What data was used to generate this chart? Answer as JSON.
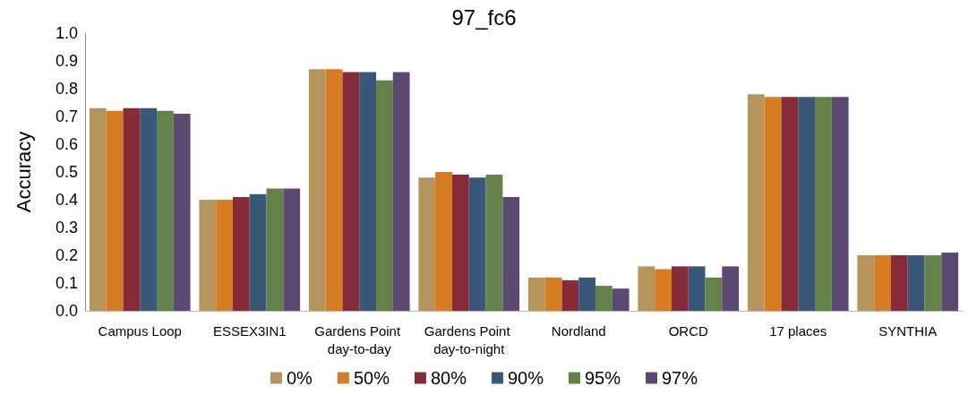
{
  "chart_data": {
    "type": "bar",
    "title": "97_fc6",
    "ylabel": "Accuracy",
    "categories": [
      "Campus Loop",
      "ESSEX3IN1",
      "Gardens Point day-to-day",
      "Gardens Point day-to-night",
      "Nordland",
      "ORCD",
      "17 places",
      "SYNTHIA"
    ],
    "series": [
      {
        "name": "0%",
        "color": "#b5955b",
        "values": [
          0.73,
          0.4,
          0.87,
          0.48,
          0.12,
          0.16,
          0.78,
          0.2
        ]
      },
      {
        "name": "50%",
        "color": "#d77d21",
        "values": [
          0.72,
          0.4,
          0.87,
          0.5,
          0.12,
          0.15,
          0.77,
          0.2
        ]
      },
      {
        "name": "80%",
        "color": "#882b38",
        "values": [
          0.73,
          0.41,
          0.86,
          0.49,
          0.11,
          0.16,
          0.77,
          0.2
        ]
      },
      {
        "name": "90%",
        "color": "#375878",
        "values": [
          0.73,
          0.42,
          0.86,
          0.48,
          0.12,
          0.16,
          0.77,
          0.2
        ]
      },
      {
        "name": "95%",
        "color": "#628345",
        "values": [
          0.72,
          0.44,
          0.83,
          0.49,
          0.09,
          0.12,
          0.77,
          0.2
        ]
      },
      {
        "name": "97%",
        "color": "#5b4873",
        "values": [
          0.71,
          0.44,
          0.86,
          0.41,
          0.08,
          0.16,
          0.77,
          0.21
        ]
      }
    ],
    "ylim": [
      0,
      1
    ],
    "yticks": [
      {
        "value": 0,
        "label": "0.0"
      },
      0.1,
      0.2,
      0.3,
      0.4,
      0.5,
      0.6,
      0.7,
      0.8,
      0.9,
      {
        "value": 1,
        "label": "1.0"
      }
    ],
    "grid": false,
    "legend": "bottom"
  }
}
